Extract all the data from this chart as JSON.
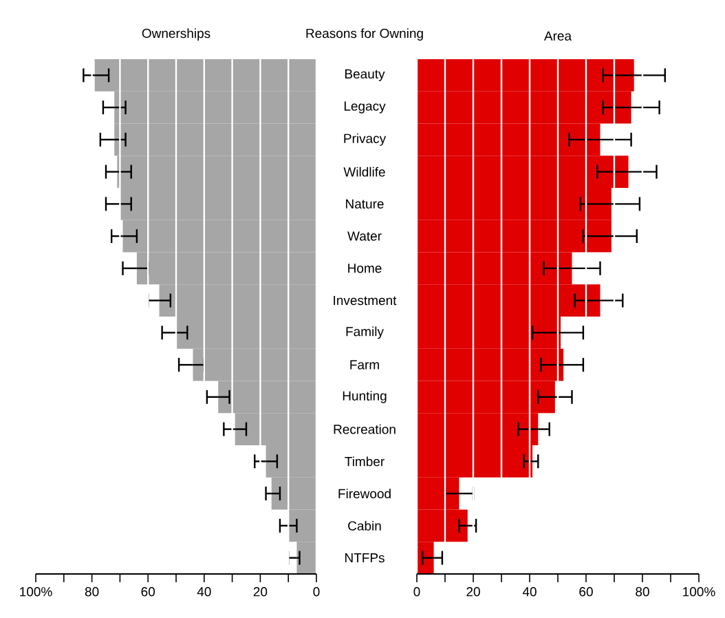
{
  "chart_data": [
    {
      "type": "bar",
      "orientation": "horizontal",
      "title": "Ownerships",
      "tick_labels": "x",
      "values": [
        79,
        72,
        72,
        71,
        70,
        69,
        64,
        56,
        50,
        44,
        35,
        29,
        18,
        16,
        10,
        7
      ],
      "errors": [
        [
          74,
          83
        ],
        [
          68,
          76
        ],
        [
          68,
          77
        ],
        [
          66,
          75
        ],
        [
          66,
          75
        ],
        [
          64,
          73
        ],
        [
          60,
          69
        ],
        [
          52,
          60
        ],
        [
          46,
          55
        ],
        [
          40,
          49
        ],
        [
          31,
          39
        ],
        [
          25,
          33
        ],
        [
          14,
          22
        ],
        [
          13,
          18
        ],
        [
          7,
          13
        ],
        [
          6,
          10
        ]
      ],
      "color": "#a6a6a6",
      "xlim": [
        100,
        0
      ],
      "xticks": [
        {
          "value": 100,
          "label": "100%"
        },
        {
          "value": 90,
          "label": null
        },
        80,
        {
          "value": 70,
          "label": null
        },
        60,
        {
          "value": 50,
          "label": null
        },
        40,
        {
          "value": 30,
          "label": null
        },
        20,
        {
          "value": 10,
          "label": null
        },
        0
      ],
      "grid": "x"
    },
    {
      "type": "bar",
      "orientation": "horizontal",
      "title": "Area",
      "ylabel": "Reasons for Owning",
      "categories": [
        "Beauty",
        "Legacy",
        "Privacy",
        "Wildlife",
        "Nature",
        "Water",
        "Home",
        "Investment",
        "Family",
        "Farm",
        "Hunting",
        "Recreation",
        "Timber",
        "Firewood",
        "Cabin",
        "NTFPs"
      ],
      "values": [
        77,
        76,
        65,
        75,
        69,
        69,
        55,
        65,
        51,
        52,
        49,
        43,
        41,
        15,
        18,
        6
      ],
      "errors": [
        [
          66,
          88
        ],
        [
          66,
          86
        ],
        [
          54,
          76
        ],
        [
          64,
          85
        ],
        [
          58,
          79
        ],
        [
          59,
          78
        ],
        [
          45,
          65
        ],
        [
          56,
          73
        ],
        [
          41,
          59
        ],
        [
          44,
          59
        ],
        [
          43,
          55
        ],
        [
          36,
          47
        ],
        [
          38,
          43
        ],
        [
          10,
          20
        ],
        [
          15,
          21
        ],
        [
          2,
          9
        ]
      ],
      "color": "#e00000",
      "xlim": [
        0,
        100
      ],
      "xticks": [
        0,
        {
          "value": 10,
          "label": null
        },
        20,
        {
          "value": 30,
          "label": null
        },
        40,
        {
          "value": 50,
          "label": null
        },
        60,
        {
          "value": 70,
          "label": null
        },
        80,
        {
          "value": 90,
          "label": null
        },
        {
          "value": 100,
          "label": "100%"
        }
      ],
      "grid": "x"
    }
  ]
}
